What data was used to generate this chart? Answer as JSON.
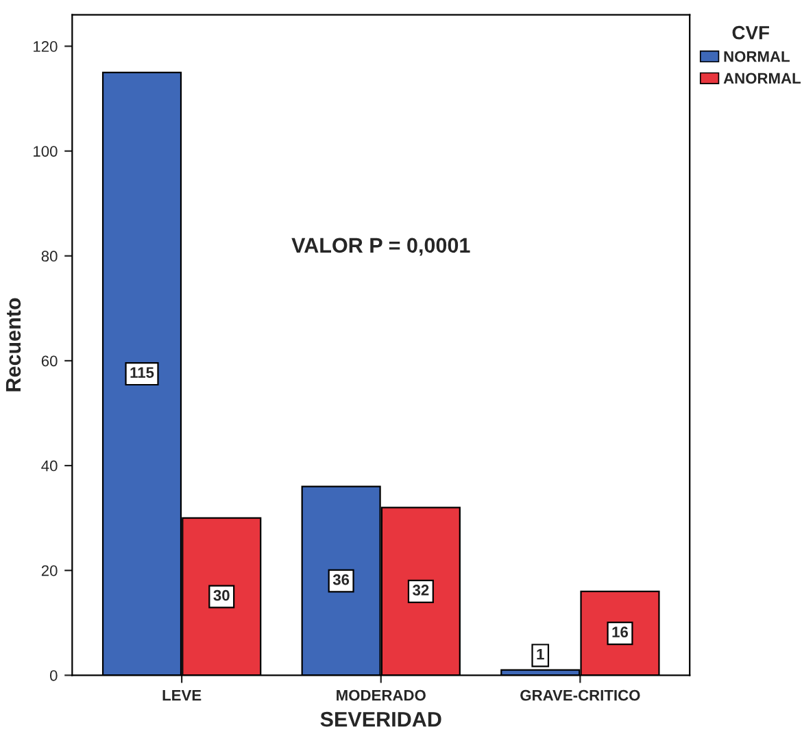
{
  "chart_data": {
    "type": "bar",
    "xlabel": "SEVERIDAD",
    "ylabel": "Recuento",
    "legend_title": "CVF",
    "categories": [
      "LEVE",
      "MODERADO",
      "GRAVE-CRITICO"
    ],
    "series": [
      {
        "name": "NORMAL",
        "color": "#3e68b8",
        "values": [
          115,
          36,
          1
        ]
      },
      {
        "name": "ANORMAL",
        "color": "#e8363e",
        "values": [
          30,
          32,
          16
        ]
      }
    ],
    "ylim": [
      0,
      126
    ],
    "yticks": [
      0,
      20,
      40,
      60,
      80,
      100,
      120
    ],
    "data_labels": true,
    "legend": "top right",
    "grid": false,
    "annotations": [
      "VALOR P = 0,0001"
    ]
  }
}
